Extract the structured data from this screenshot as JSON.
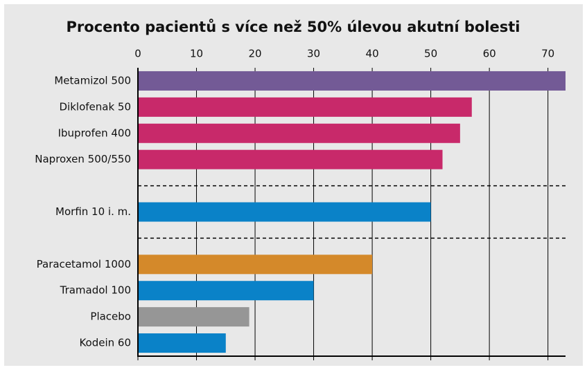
{
  "chart_data": {
    "type": "bar",
    "orientation": "horizontal",
    "title": "Procento pacientů s více než 50% úlevou akutní bolesti",
    "categories": [
      "Metamizol 500",
      "Diklofenak 50",
      "Ibuprofen 400",
      "Naproxen 500/550",
      null,
      "Morfin 10 i. m.",
      null,
      "Paracetamol 1000",
      "Tramadol 100",
      "Placebo",
      "Kodein 60"
    ],
    "values": [
      73,
      57,
      55,
      52,
      null,
      50,
      null,
      40,
      30,
      19,
      15
    ],
    "colors": [
      "#735a96",
      "#c8296a",
      "#c8296a",
      "#c8296a",
      null,
      "#0a82c8",
      null,
      "#d4892a",
      "#0a82c8",
      "#969696",
      "#0a82c8"
    ],
    "xlim": [
      0,
      73
    ],
    "xticks": [
      0,
      10,
      20,
      30,
      40,
      50,
      60,
      70
    ],
    "grid": true
  }
}
